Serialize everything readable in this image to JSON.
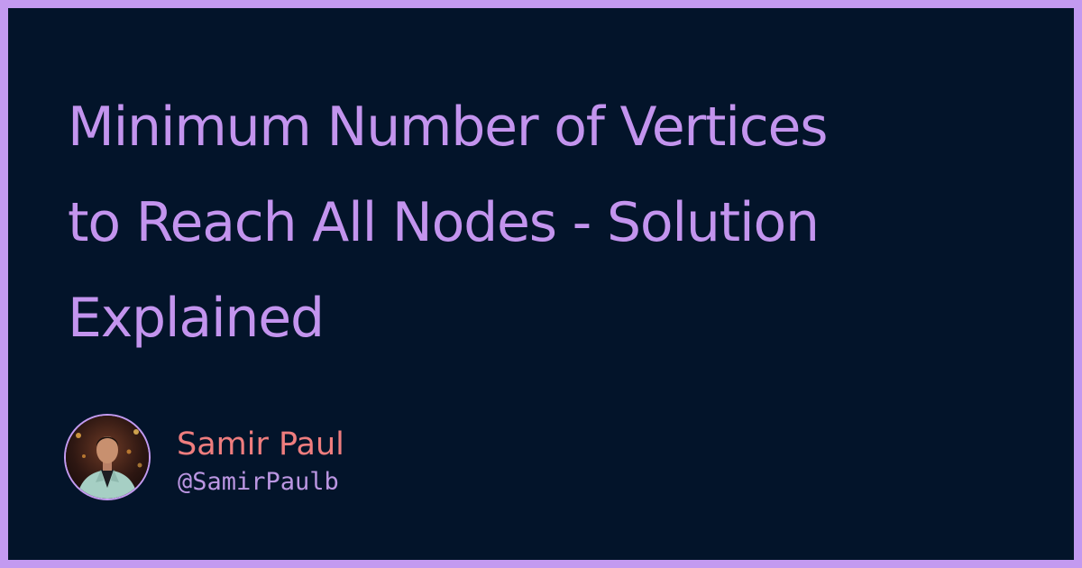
{
  "title": {
    "line1": "Minimum Number of Vertices",
    "line2": "to Reach All Nodes - Solution",
    "line3": "Explained"
  },
  "author": {
    "name": "Samir Paul",
    "handle": "@SamirPaulb",
    "avatar_icon": "author-photo"
  },
  "colors": {
    "frame": "#c39af0",
    "background": "#03142a",
    "title": "#c394ee",
    "name": "#ef7d7e",
    "handle": "#bb96e2"
  }
}
